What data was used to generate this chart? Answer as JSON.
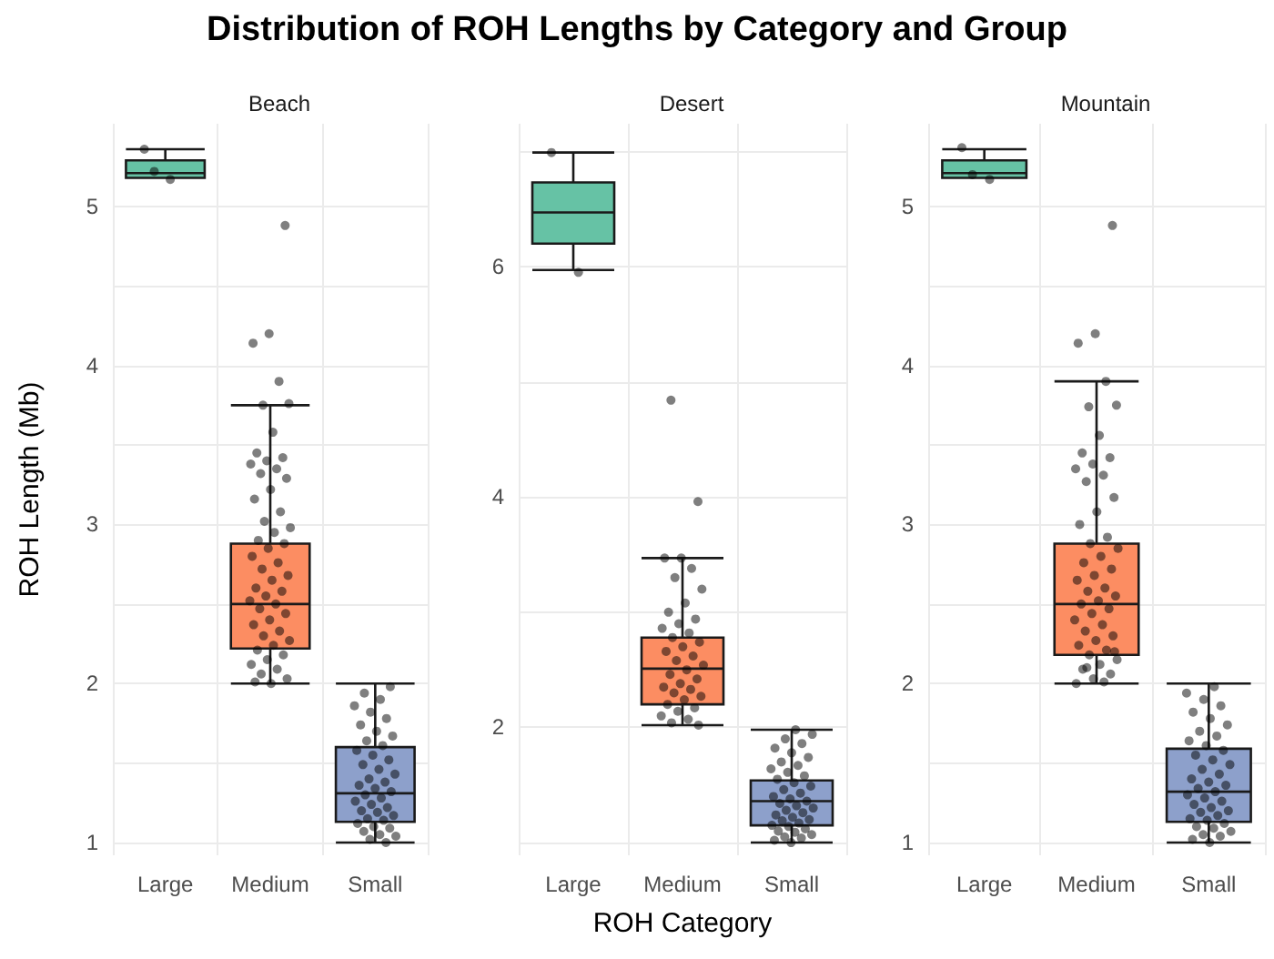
{
  "chart_data": [
    {
      "type": "box",
      "title": "Distribution of ROH Lengths by Category and Group",
      "subtitle": "Beach",
      "ylabel": "ROH Length (Mb)",
      "categories": [
        "Large",
        "Medium",
        "Small"
      ],
      "colors": [
        "#66c2a5",
        "#fc8d62",
        "#8da0cb"
      ],
      "boxes": [
        {
          "low": 5.18,
          "q1": 5.18,
          "median": 5.21,
          "q3": 5.29,
          "high": 5.36
        },
        {
          "low": 2.0,
          "q1": 2.22,
          "median": 2.5,
          "q3": 2.88,
          "high": 3.75
        },
        {
          "low": 1.0,
          "q1": 1.13,
          "median": 1.31,
          "q3": 1.6,
          "high": 2.0
        }
      ],
      "series": [
        {
          "type": "scatter",
          "color": "#000000",
          "x": [
            "Large",
            "Large",
            "Large",
            "Medium",
            "Medium",
            "Medium",
            "Medium",
            "Medium",
            "Medium",
            "Medium",
            "Medium",
            "Medium",
            "Medium",
            "Medium",
            "Medium",
            "Medium",
            "Medium",
            "Medium",
            "Medium",
            "Medium",
            "Medium",
            "Medium",
            "Medium",
            "Medium",
            "Medium",
            "Medium",
            "Medium",
            "Medium",
            "Medium",
            "Medium",
            "Medium",
            "Medium",
            "Medium",
            "Medium",
            "Medium",
            "Medium",
            "Medium",
            "Medium",
            "Medium",
            "Medium",
            "Medium",
            "Medium",
            "Medium",
            "Medium",
            "Medium",
            "Medium",
            "Medium",
            "Medium",
            "Medium",
            "Medium",
            "Medium",
            "Medium",
            "Medium",
            "Small",
            "Small",
            "Small",
            "Small",
            "Small",
            "Small",
            "Small",
            "Small",
            "Small",
            "Small",
            "Small",
            "Small",
            "Small",
            "Small",
            "Small",
            "Small",
            "Small",
            "Small",
            "Small",
            "Small",
            "Small",
            "Small",
            "Small",
            "Small",
            "Small",
            "Small",
            "Small",
            "Small",
            "Small",
            "Small",
            "Small",
            "Small",
            "Small",
            "Small",
            "Small",
            "Small",
            "Small",
            "Small",
            "Small",
            "Small"
          ],
          "values": [
            5.36,
            5.17,
            5.22,
            4.88,
            4.2,
            4.14,
            3.9,
            3.75,
            3.76,
            3.58,
            3.45,
            3.42,
            3.4,
            3.38,
            3.35,
            3.32,
            3.29,
            3.22,
            3.16,
            3.08,
            3.02,
            2.98,
            2.95,
            2.9,
            2.88,
            2.85,
            2.8,
            2.76,
            2.72,
            2.68,
            2.65,
            2.6,
            2.58,
            2.55,
            2.52,
            2.5,
            2.47,
            2.44,
            2.4,
            2.37,
            2.33,
            2.3,
            2.27,
            2.24,
            2.21,
            2.18,
            2.15,
            2.12,
            2.09,
            2.06,
            2.03,
            2.0,
            2.01,
            1.0,
            1.02,
            1.04,
            1.05,
            1.07,
            1.09,
            1.1,
            1.12,
            1.14,
            1.15,
            1.17,
            1.19,
            1.2,
            1.22,
            1.24,
            1.26,
            1.28,
            1.3,
            1.32,
            1.34,
            1.36,
            1.38,
            1.4,
            1.43,
            1.46,
            1.49,
            1.52,
            1.55,
            1.58,
            1.61,
            1.64,
            1.67,
            1.7,
            1.74,
            1.78,
            1.82,
            1.86,
            1.9,
            1.94,
            1.98
          ]
        }
      ],
      "ylim": [
        0.92,
        5.52
      ],
      "yticks": [
        1,
        {
          "value": 1.5,
          "label": null
        },
        2,
        {
          "value": 2.5,
          "label": null
        },
        3,
        {
          "value": 3.5,
          "label": null
        },
        4,
        {
          "value": 4.5,
          "label": null
        },
        5
      ],
      "grid": true
    },
    {
      "type": "box",
      "subtitle": "Desert",
      "xlabel": "ROH Category",
      "categories": [
        "Large",
        "Medium",
        "Small"
      ],
      "colors": [
        "#66c2a5",
        "#fc8d62",
        "#8da0cb"
      ],
      "boxes": [
        {
          "low": 5.97,
          "q1": 6.2,
          "median": 6.47,
          "q3": 6.73,
          "high": 6.99
        },
        {
          "low": 2.02,
          "q1": 2.2,
          "median": 2.51,
          "q3": 2.78,
          "high": 3.47
        },
        {
          "low": 1.0,
          "q1": 1.15,
          "median": 1.36,
          "q3": 1.54,
          "high": 1.98
        }
      ],
      "series": [
        {
          "type": "scatter",
          "color": "#000000",
          "x": [
            "Large",
            "Large",
            "Medium",
            "Medium",
            "Medium",
            "Medium",
            "Medium",
            "Medium",
            "Medium",
            "Medium",
            "Medium",
            "Medium",
            "Medium",
            "Medium",
            "Medium",
            "Medium",
            "Medium",
            "Medium",
            "Medium",
            "Medium",
            "Medium",
            "Medium",
            "Medium",
            "Medium",
            "Medium",
            "Medium",
            "Medium",
            "Medium",
            "Medium",
            "Medium",
            "Medium",
            "Medium",
            "Medium",
            "Medium",
            "Medium",
            "Medium",
            "Medium",
            "Medium",
            "Small",
            "Small",
            "Small",
            "Small",
            "Small",
            "Small",
            "Small",
            "Small",
            "Small",
            "Small",
            "Small",
            "Small",
            "Small",
            "Small",
            "Small",
            "Small",
            "Small",
            "Small",
            "Small",
            "Small",
            "Small",
            "Small",
            "Small",
            "Small",
            "Small",
            "Small",
            "Small",
            "Small",
            "Small",
            "Small",
            "Small",
            "Small",
            "Small",
            "Small",
            "Small",
            "Small",
            "Small",
            "Small",
            "Small",
            "Small"
          ],
          "values": [
            6.99,
            5.95,
            4.84,
            3.96,
            3.47,
            3.47,
            3.38,
            3.3,
            3.2,
            3.08,
            3.0,
            2.94,
            2.9,
            2.86,
            2.82,
            2.78,
            2.74,
            2.7,
            2.66,
            2.62,
            2.58,
            2.54,
            2.5,
            2.46,
            2.42,
            2.38,
            2.35,
            2.33,
            2.3,
            2.27,
            2.24,
            2.2,
            2.17,
            2.14,
            2.1,
            2.07,
            2.04,
            2.02,
            1.0,
            1.02,
            1.04,
            1.05,
            1.07,
            1.09,
            1.1,
            1.12,
            1.14,
            1.15,
            1.17,
            1.19,
            1.2,
            1.22,
            1.24,
            1.26,
            1.28,
            1.3,
            1.32,
            1.34,
            1.36,
            1.38,
            1.4,
            1.43,
            1.46,
            1.49,
            1.52,
            1.55,
            1.58,
            1.61,
            1.64,
            1.67,
            1.7,
            1.74,
            1.78,
            1.82,
            1.86,
            1.9,
            1.94,
            1.98
          ]
        }
      ],
      "ylim": [
        0.89,
        7.24
      ],
      "yticks": [
        {
          "value": 1,
          "label": null
        },
        2,
        {
          "value": 3,
          "label": null
        },
        4,
        {
          "value": 5,
          "label": null
        },
        6,
        {
          "value": 7,
          "label": null
        }
      ],
      "grid": true
    },
    {
      "type": "box",
      "subtitle": "Mountain",
      "categories": [
        "Large",
        "Medium",
        "Small"
      ],
      "colors": [
        "#66c2a5",
        "#fc8d62",
        "#8da0cb"
      ],
      "boxes": [
        {
          "low": 5.18,
          "q1": 5.18,
          "median": 5.21,
          "q3": 5.29,
          "high": 5.36
        },
        {
          "low": 2.0,
          "q1": 2.18,
          "median": 2.5,
          "q3": 2.88,
          "high": 3.9
        },
        {
          "low": 1.0,
          "q1": 1.13,
          "median": 1.32,
          "q3": 1.59,
          "high": 2.0
        }
      ],
      "series": [
        {
          "type": "scatter",
          "color": "#000000",
          "x": [
            "Large",
            "Large",
            "Large",
            "Medium",
            "Medium",
            "Medium",
            "Medium",
            "Medium",
            "Medium",
            "Medium",
            "Medium",
            "Medium",
            "Medium",
            "Medium",
            "Medium",
            "Medium",
            "Medium",
            "Medium",
            "Medium",
            "Medium",
            "Medium",
            "Medium",
            "Medium",
            "Medium",
            "Medium",
            "Medium",
            "Medium",
            "Medium",
            "Medium",
            "Medium",
            "Medium",
            "Medium",
            "Medium",
            "Medium",
            "Medium",
            "Medium",
            "Medium",
            "Medium",
            "Medium",
            "Medium",
            "Medium",
            "Medium",
            "Medium",
            "Medium",
            "Medium",
            "Medium",
            "Medium",
            "Medium",
            "Medium",
            "Medium",
            "Medium",
            "Small",
            "Small",
            "Small",
            "Small",
            "Small",
            "Small",
            "Small",
            "Small",
            "Small",
            "Small",
            "Small",
            "Small",
            "Small",
            "Small",
            "Small",
            "Small",
            "Small",
            "Small",
            "Small",
            "Small",
            "Small",
            "Small",
            "Small",
            "Small",
            "Small",
            "Small",
            "Small",
            "Small",
            "Small",
            "Small",
            "Small",
            "Small",
            "Small",
            "Small",
            "Small",
            "Small",
            "Small",
            "Small",
            "Small",
            "Small"
          ],
          "values": [
            5.37,
            5.17,
            5.2,
            4.88,
            4.2,
            4.14,
            3.9,
            3.74,
            3.75,
            3.56,
            3.45,
            3.42,
            3.38,
            3.35,
            3.31,
            3.27,
            3.17,
            3.08,
            3.0,
            2.92,
            2.88,
            2.85,
            2.8,
            2.76,
            2.72,
            2.68,
            2.65,
            2.6,
            2.58,
            2.55,
            2.52,
            2.5,
            2.47,
            2.44,
            2.4,
            2.37,
            2.33,
            2.3,
            2.27,
            2.24,
            2.21,
            2.18,
            2.15,
            2.12,
            2.09,
            2.06,
            2.03,
            2.0,
            2.01,
            2.1,
            2.2,
            1.0,
            1.02,
            1.04,
            1.05,
            1.07,
            1.09,
            1.1,
            1.12,
            1.14,
            1.15,
            1.17,
            1.19,
            1.2,
            1.22,
            1.24,
            1.26,
            1.28,
            1.3,
            1.32,
            1.34,
            1.36,
            1.38,
            1.4,
            1.43,
            1.46,
            1.49,
            1.52,
            1.55,
            1.58,
            1.61,
            1.64,
            1.67,
            1.7,
            1.74,
            1.78,
            1.82,
            1.86,
            1.9,
            1.94,
            1.98
          ]
        }
      ],
      "ylim": [
        0.92,
        5.52
      ],
      "yticks": [
        1,
        {
          "value": 1.5,
          "label": null
        },
        2,
        {
          "value": 2.5,
          "label": null
        },
        3,
        {
          "value": 3.5,
          "label": null
        },
        4,
        {
          "value": 4.5,
          "label": null
        },
        5
      ],
      "grid": true
    }
  ]
}
